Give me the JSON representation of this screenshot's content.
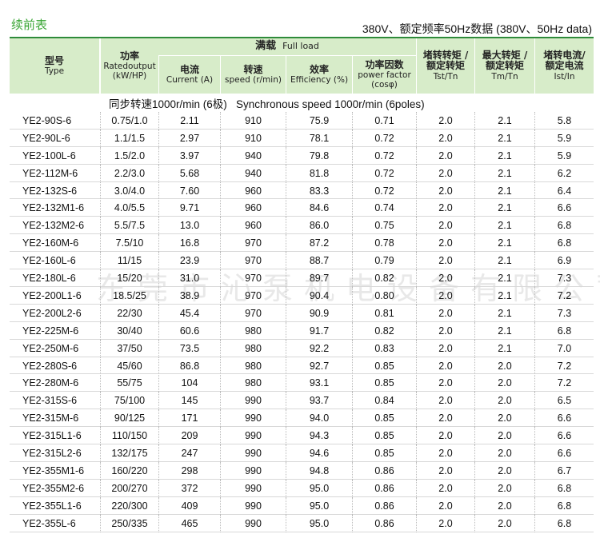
{
  "title": "续前表",
  "subtitle": "380V、额定频率50Hz数据 (380V、50Hz data)",
  "header": {
    "full_load": [
      "满载",
      "Full load"
    ],
    "columns": [
      [
        "型号",
        "Type"
      ],
      [
        "功率",
        "Ratedoutput",
        "(kW/HP)"
      ],
      [
        "电流",
        "Current (A)"
      ],
      [
        "转速",
        "speed (r/min)"
      ],
      [
        "效率",
        "Efficiency (%)"
      ],
      [
        "功率因数",
        "power factor",
        "(cosφ)"
      ],
      [
        "堵转转矩 /",
        "额定转矩",
        "Tst/Tn"
      ],
      [
        "最大转矩 /",
        "额定转矩",
        "Tm/Tn"
      ],
      [
        "堵转电流/",
        "额定电流",
        "Ist/In"
      ]
    ]
  },
  "section": "同步转速1000r/min (6极)   Synchronous speed 1000r/min (6poles)",
  "rows": [
    [
      "YE2-90S-6",
      "0.75/1.0",
      "2.11",
      "910",
      "75.9",
      "0.71",
      "2.0",
      "2.1",
      "5.8"
    ],
    [
      "YE2-90L-6",
      "1.1/1.5",
      "2.97",
      "910",
      "78.1",
      "0.72",
      "2.0",
      "2.1",
      "5.9"
    ],
    [
      "YE2-100L-6",
      "1.5/2.0",
      "3.97",
      "940",
      "79.8",
      "0.72",
      "2.0",
      "2.1",
      "5.9"
    ],
    [
      "YE2-112M-6",
      "2.2/3.0",
      "5.68",
      "940",
      "81.8",
      "0.72",
      "2.0",
      "2.1",
      "6.2"
    ],
    [
      "YE2-132S-6",
      "3.0/4.0",
      "7.60",
      "960",
      "83.3",
      "0.72",
      "2.0",
      "2.1",
      "6.4"
    ],
    [
      "YE2-132M1-6",
      "4.0/5.5",
      "9.71",
      "960",
      "84.6",
      "0.74",
      "2.0",
      "2.1",
      "6.6"
    ],
    [
      "YE2-132M2-6",
      "5.5/7.5",
      "13.0",
      "960",
      "86.0",
      "0.75",
      "2.0",
      "2.1",
      "6.8"
    ],
    [
      "YE2-160M-6",
      "7.5/10",
      "16.8",
      "970",
      "87.2",
      "0.78",
      "2.0",
      "2.1",
      "6.8"
    ],
    [
      "YE2-160L-6",
      "11/15",
      "23.9",
      "970",
      "88.7",
      "0.79",
      "2.0",
      "2.1",
      "6.9"
    ],
    [
      "YE2-180L-6",
      "15/20",
      "31.0",
      "970",
      "89.7",
      "0.82",
      "2.0",
      "2.1",
      "7.3"
    ],
    [
      "YE2-200L1-6",
      "18.5/25",
      "38.9",
      "970",
      "90.4",
      "0.80",
      "2.0",
      "2.1",
      "7.2"
    ],
    [
      "YE2-200L2-6",
      "22/30",
      "45.4",
      "970",
      "90.9",
      "0.81",
      "2.0",
      "2.1",
      "7.3"
    ],
    [
      "YE2-225M-6",
      "30/40",
      "60.6",
      "980",
      "91.7",
      "0.82",
      "2.0",
      "2.1",
      "6.8"
    ],
    [
      "YE2-250M-6",
      "37/50",
      "73.5",
      "980",
      "92.2",
      "0.83",
      "2.0",
      "2.1",
      "7.0"
    ],
    [
      "YE2-280S-6",
      "45/60",
      "86.8",
      "980",
      "92.7",
      "0.85",
      "2.0",
      "2.0",
      "7.2"
    ],
    [
      "YE2-280M-6",
      "55/75",
      "104",
      "980",
      "93.1",
      "0.85",
      "2.0",
      "2.0",
      "7.2"
    ],
    [
      "YE2-315S-6",
      "75/100",
      "145",
      "990",
      "93.7",
      "0.84",
      "2.0",
      "2.0",
      "6.5"
    ],
    [
      "YE2-315M-6",
      "90/125",
      "171",
      "990",
      "94.0",
      "0.85",
      "2.0",
      "2.0",
      "6.6"
    ],
    [
      "YE2-315L1-6",
      "110/150",
      "209",
      "990",
      "94.3",
      "0.85",
      "2.0",
      "2.0",
      "6.6"
    ],
    [
      "YE2-315L2-6",
      "132/175",
      "247",
      "990",
      "94.6",
      "0.85",
      "2.0",
      "2.0",
      "6.6"
    ],
    [
      "YE2-355M1-6",
      "160/220",
      "298",
      "990",
      "94.8",
      "0.86",
      "2.0",
      "2.0",
      "6.7"
    ],
    [
      "YE2-355M2-6",
      "200/270",
      "372",
      "990",
      "95.0",
      "0.86",
      "2.0",
      "2.0",
      "6.8"
    ],
    [
      "YE2-355L1-6",
      "220/300",
      "409",
      "990",
      "95.0",
      "0.86",
      "2.0",
      "2.0",
      "6.8"
    ],
    [
      "YE2-355L-6",
      "250/335",
      "465",
      "990",
      "95.0",
      "0.86",
      "2.0",
      "2.0",
      "6.8"
    ]
  ],
  "watermark": "东莞市沁泵机电设备有限公司"
}
